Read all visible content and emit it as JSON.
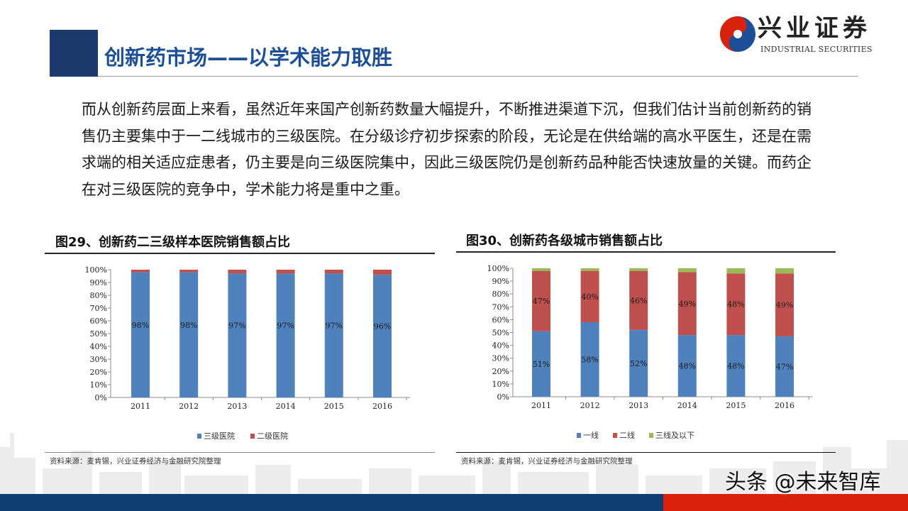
{
  "header": {
    "title": "创新药市场——以学术能力取胜",
    "logo_cn": "兴业证券",
    "logo_en": "INDUSTRIAL SECURITIES"
  },
  "body_text": "而从创新药层面上来看，虽然近年来国产创新药数量大幅提升，不断推进渠道下沉，但我们估计当前创新药的销售仍主要集中于一二线城市的三级医院。在分级诊疗初步探索的阶段，无论是在供给端的高水平医生，还是在需求端的相关适应症患者，仍主要是向三级医院集中，因此三级医院仍是创新药品种能否快速放量的关键。而药企在对三级医院的竞争中，学术能力将是重中之重。",
  "colors": {
    "accent_navy": "#1b3a6b",
    "title_blue": "#1d4f96",
    "footer_red": "#d9220b"
  },
  "watermark": "头条 @未来智库",
  "chart_data": [
    {
      "type": "bar",
      "stacked": true,
      "title": "图29、创新药二三级样本医院销售额占比",
      "categories": [
        "2011",
        "2012",
        "2013",
        "2014",
        "2015",
        "2016"
      ],
      "yticks": [
        "0%",
        "10%",
        "20%",
        "30%",
        "40%",
        "50%",
        "60%",
        "70%",
        "80%",
        "90%",
        "100%"
      ],
      "ylim": [
        0,
        100
      ],
      "series": [
        {
          "name": "三级医院",
          "color": "#4f81bd",
          "values": [
            98,
            98,
            97,
            97,
            97,
            96
          ],
          "labels": [
            "98%",
            "98%",
            "97%",
            "97%",
            "97%",
            "96%"
          ]
        },
        {
          "name": "二级医院",
          "color": "#c0504d",
          "values": [
            2,
            2,
            3,
            3,
            3,
            4
          ]
        }
      ],
      "legend": "bottom",
      "source": "资料来源：麦肯锡，兴业证券经济与金融研究院整理"
    },
    {
      "type": "bar",
      "stacked": true,
      "title": "图30、创新药各级城市销售额占比",
      "categories": [
        "2011",
        "2012",
        "2013",
        "2014",
        "2015",
        "2016"
      ],
      "yticks": [
        "0%",
        "10%",
        "20%",
        "30%",
        "40%",
        "50%",
        "60%",
        "70%",
        "80%",
        "90%",
        "100%"
      ],
      "ylim": [
        0,
        100
      ],
      "series": [
        {
          "name": "一线",
          "color": "#4f81bd",
          "values": [
            51,
            58,
            52,
            48,
            48,
            47
          ],
          "labels": [
            "51%",
            "58%",
            "52%",
            "48%",
            "48%",
            "47%"
          ]
        },
        {
          "name": "二线",
          "color": "#c0504d",
          "values": [
            47,
            40,
            46,
            49,
            48,
            49
          ],
          "labels": [
            "47%",
            "40%",
            "46%",
            "49%",
            "48%",
            "49%"
          ]
        },
        {
          "name": "三线及以下",
          "color": "#9bbb59",
          "values": [
            2,
            2,
            2,
            3,
            4,
            4
          ]
        }
      ],
      "legend": "bottom",
      "source": "资料来源：麦肯锡，兴业证券经济与金融研究院整理"
    }
  ]
}
